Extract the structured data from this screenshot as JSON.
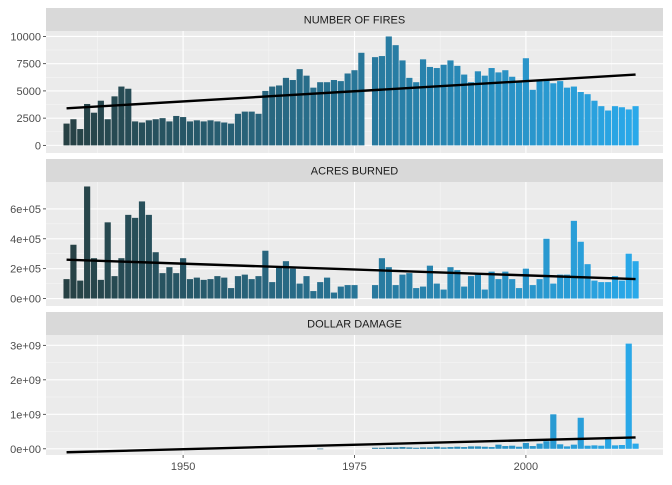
{
  "chart_data": {
    "type": "bar",
    "x": [
      1933,
      1934,
      1935,
      1936,
      1937,
      1938,
      1939,
      1940,
      1941,
      1942,
      1943,
      1944,
      1945,
      1946,
      1947,
      1948,
      1949,
      1950,
      1951,
      1952,
      1953,
      1954,
      1955,
      1956,
      1957,
      1958,
      1959,
      1960,
      1961,
      1962,
      1963,
      1964,
      1965,
      1966,
      1967,
      1968,
      1969,
      1970,
      1971,
      1972,
      1973,
      1974,
      1975,
      1976,
      1977,
      1978,
      1979,
      1980,
      1981,
      1982,
      1983,
      1984,
      1985,
      1986,
      1987,
      1988,
      1989,
      1990,
      1991,
      1992,
      1993,
      1994,
      1995,
      1996,
      1997,
      1998,
      1999,
      2000,
      2001,
      2002,
      2003,
      2004,
      2005,
      2006,
      2007,
      2008,
      2009,
      2010,
      2011,
      2012,
      2013,
      2014,
      2015,
      2016
    ],
    "x_ticks": [
      "1950",
      "1975",
      "2000"
    ],
    "xlim": [
      1930,
      2020
    ],
    "gradient_colors": [
      "#274144",
      "#29a9ea"
    ],
    "trend_color": "#000000",
    "panels": [
      {
        "title": "NUMBER OF FIRES",
        "ylim": [
          -700,
          10500
        ],
        "y_ticks": [
          {
            "value": 0,
            "label": "0"
          },
          {
            "value": 2500,
            "label": "2500"
          },
          {
            "value": 5000,
            "label": "5000"
          },
          {
            "value": 7500,
            "label": "7500"
          },
          {
            "value": 10000,
            "label": "10000"
          }
        ],
        "values": [
          2000,
          2400,
          1500,
          3800,
          3000,
          4100,
          2400,
          4500,
          5400,
          5200,
          2200,
          2100,
          2300,
          2400,
          2500,
          2200,
          2700,
          2600,
          2200,
          2300,
          2200,
          2300,
          2200,
          2100,
          2000,
          2900,
          3100,
          3100,
          2900,
          5000,
          5400,
          5500,
          6200,
          6000,
          7000,
          6400,
          5300,
          5800,
          5800,
          6000,
          5900,
          6600,
          6900,
          8500,
          0,
          8100,
          8200,
          10000,
          9200,
          7800,
          6200,
          5800,
          7900,
          7200,
          7100,
          7400,
          7800,
          7300,
          6500,
          5800,
          6800,
          6400,
          7100,
          6700,
          6900,
          6300,
          5900,
          8000,
          5100,
          6000,
          6100,
          5700,
          5900,
          5300,
          5400,
          4900,
          4700,
          4100,
          3600,
          3200,
          3600,
          3500,
          3300,
          3600
        ],
        "trend": {
          "from": [
            1933,
            3400
          ],
          "to": [
            2016,
            6500
          ]
        }
      },
      {
        "title": "ACRES BURNED",
        "ylim": [
          -50000,
          780000
        ],
        "y_ticks": [
          {
            "value": 0,
            "label": "0e+00"
          },
          {
            "value": 200000,
            "label": "2e+05"
          },
          {
            "value": 400000,
            "label": "4e+05"
          },
          {
            "value": 600000,
            "label": "6e+05"
          }
        ],
        "values": [
          130000,
          360000,
          120000,
          750000,
          270000,
          125000,
          510000,
          150000,
          270000,
          560000,
          540000,
          650000,
          560000,
          310000,
          170000,
          210000,
          170000,
          270000,
          130000,
          140000,
          125000,
          130000,
          150000,
          140000,
          70000,
          150000,
          160000,
          130000,
          150000,
          320000,
          110000,
          210000,
          250000,
          200000,
          100000,
          150000,
          50000,
          110000,
          140000,
          40000,
          80000,
          90000,
          90000,
          0,
          0,
          90000,
          270000,
          210000,
          90000,
          160000,
          170000,
          70000,
          80000,
          220000,
          100000,
          60000,
          210000,
          190000,
          80000,
          150000,
          160000,
          60000,
          180000,
          130000,
          180000,
          130000,
          70000,
          200000,
          90000,
          130000,
          400000,
          100000,
          160000,
          160000,
          520000,
          380000,
          230000,
          120000,
          110000,
          110000,
          150000,
          120000,
          300000,
          250000
        ],
        "trend": {
          "from": [
            1933,
            260000
          ],
          "to": [
            2016,
            130000
          ]
        }
      },
      {
        "title": "DOLLAR DAMAGE",
        "ylim": [
          -180000000,
          3300000000
        ],
        "y_ticks": [
          {
            "value": 0,
            "label": "0e+00"
          },
          {
            "value": 1000000000,
            "label": "1e+09"
          },
          {
            "value": 2000000000,
            "label": "2e+09"
          },
          {
            "value": 3000000000,
            "label": "3e+09"
          }
        ],
        "values": [
          0,
          0,
          0,
          0,
          0,
          0,
          0,
          0,
          0,
          0,
          0,
          0,
          0,
          0,
          0,
          0,
          0,
          0,
          0,
          0,
          0,
          0,
          0,
          0,
          0,
          0,
          0,
          0,
          0,
          0,
          0,
          0,
          0,
          0,
          0,
          0,
          0,
          5000000,
          0,
          0,
          0,
          0,
          0,
          0,
          0,
          30000000,
          30000000,
          40000000,
          40000000,
          50000000,
          40000000,
          30000000,
          40000000,
          40000000,
          60000000,
          40000000,
          50000000,
          60000000,
          50000000,
          70000000,
          70000000,
          60000000,
          50000000,
          120000000,
          80000000,
          90000000,
          60000000,
          170000000,
          80000000,
          150000000,
          220000000,
          1000000000,
          130000000,
          70000000,
          120000000,
          900000000,
          90000000,
          100000000,
          90000000,
          300000000,
          100000000,
          110000000,
          3050000000,
          150000000
        ],
        "trend": {
          "from": [
            1933,
            -100000000
          ],
          "to": [
            2016,
            330000000
          ]
        }
      }
    ]
  }
}
